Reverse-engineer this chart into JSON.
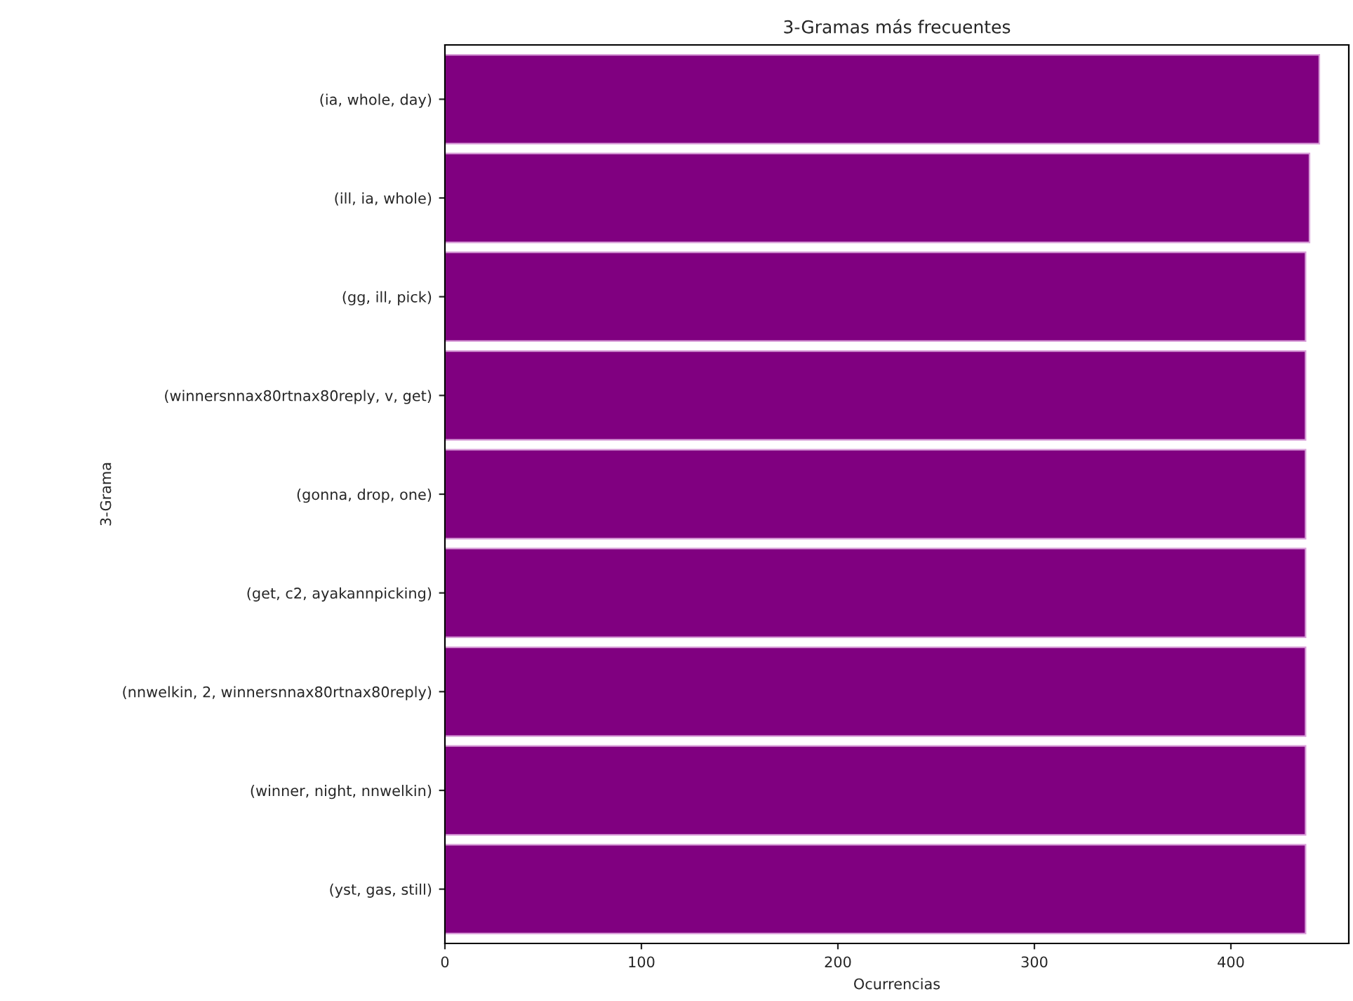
{
  "chart_data": {
    "type": "bar",
    "orientation": "horizontal",
    "title": "3-Gramas más frecuentes",
    "xlabel": "Ocurrencias",
    "ylabel": "3-Grama",
    "categories": [
      "(ia, whole, day)",
      "(ill, ia, whole)",
      "(gg, ill, pick)",
      "(winnersnnax80rtnax80reply, v, get)",
      "(gonna, drop, one)",
      "(get, c2, ayakannpicking)",
      "(nnwelkin, 2, winnersnnax80rtnax80reply)",
      "(winner, night, nnwelkin)",
      "(yst, gas, still)"
    ],
    "values": [
      445,
      440,
      438,
      438,
      438,
      438,
      438,
      438,
      438
    ],
    "color": "#800080",
    "xlim": [
      0,
      460
    ],
    "xticks": [
      0,
      100,
      200,
      300,
      400
    ],
    "grid": false,
    "legend": false
  }
}
